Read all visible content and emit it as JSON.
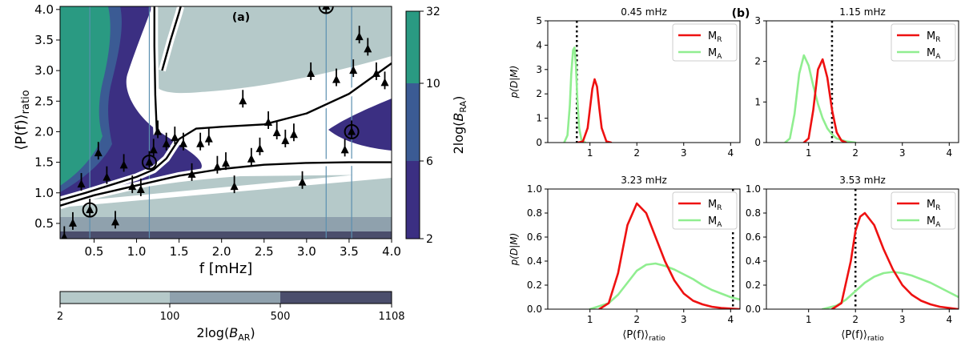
{
  "chart_data": [
    {
      "type": "contour",
      "panel_label": "(a)",
      "xlabel": "f [mHz]",
      "ylabel": "⟨P(f)⟩ratio",
      "ylabel_main": "⟨P(f)⟩",
      "ylabel_sub": "ratio",
      "xlim": [
        0.1,
        4.0
      ],
      "ylim": [
        0.25,
        4.05
      ],
      "xticks": [
        "0.5",
        "1.0",
        "1.5",
        "2.0",
        "2.5",
        "3.0",
        "3.5",
        "4.0"
      ],
      "yticks": [
        "0.5",
        "1.0",
        "1.5",
        "2.0",
        "2.5",
        "3.0",
        "3.5",
        "4.0"
      ],
      "xtick_values": [
        0.5,
        1.0,
        1.5,
        2.0,
        2.5,
        3.0,
        3.5,
        4.0
      ],
      "ytick_values": [
        0.5,
        1.0,
        1.5,
        2.0,
        2.5,
        3.0,
        3.5,
        4.0
      ],
      "colorbar_RA": {
        "label": "2log(BRA)",
        "label_prefix": "2log(",
        "label_sym": "B",
        "label_sub": "RA",
        "label_suffix": ")",
        "ticks": [
          "2",
          "6",
          "10",
          "32"
        ],
        "colors": [
          "#3b2f82",
          "#3b5b94",
          "#2a9a82"
        ]
      },
      "colorbar_AR": {
        "label": "2log(BAR)",
        "label_prefix": "2log(",
        "label_sym": "B",
        "label_sub": "AR",
        "label_suffix": ")",
        "ticks": [
          "2",
          "100",
          "500",
          "1108"
        ],
        "colors": [
          "#b5c9c9",
          "#8fa1ad",
          "#4b4e6c"
        ]
      },
      "vertical_lines_mhz": [
        0.45,
        1.15,
        3.23,
        3.53
      ],
      "curves": {
        "upper_x": [
          0.1,
          0.4,
          0.7,
          1.0,
          1.2,
          1.35,
          1.5,
          1.7,
          2.0,
          2.5,
          3.0,
          3.5,
          4.0
        ],
        "upper_y": [
          0.88,
          1.0,
          1.13,
          1.26,
          1.38,
          1.56,
          1.88,
          2.05,
          2.08,
          2.12,
          2.3,
          2.62,
          3.12
        ],
        "lower_x": [
          0.1,
          0.5,
          1.0,
          1.5,
          2.0,
          2.5,
          3.0,
          3.5,
          4.0
        ],
        "lower_y": [
          0.79,
          0.96,
          1.12,
          1.28,
          1.39,
          1.46,
          1.49,
          1.5,
          1.5
        ],
        "left_branch_x": [
          1.24,
          1.22,
          1.21,
          1.21
        ],
        "left_branch_y": [
          1.95,
          2.6,
          3.4,
          4.05
        ],
        "top_x": [
          1.3,
          1.4,
          1.5,
          1.52
        ],
        "top_y": [
          3.0,
          3.5,
          3.95,
          4.05
        ]
      },
      "points": [
        {
          "f": 0.15,
          "ratio": 0.27
        },
        {
          "f": 0.25,
          "ratio": 0.5
        },
        {
          "f": 0.35,
          "ratio": 1.14
        },
        {
          "f": 0.45,
          "ratio": 0.72
        },
        {
          "f": 0.55,
          "ratio": 1.65
        },
        {
          "f": 0.65,
          "ratio": 1.25
        },
        {
          "f": 0.75,
          "ratio": 0.52
        },
        {
          "f": 0.85,
          "ratio": 1.45
        },
        {
          "f": 0.95,
          "ratio": 1.1
        },
        {
          "f": 1.05,
          "ratio": 1.05
        },
        {
          "f": 1.15,
          "ratio": 1.5
        },
        {
          "f": 1.2,
          "ratio": 1.7
        },
        {
          "f": 1.25,
          "ratio": 2.0
        },
        {
          "f": 1.35,
          "ratio": 1.8
        },
        {
          "f": 1.45,
          "ratio": 1.9
        },
        {
          "f": 1.55,
          "ratio": 1.8
        },
        {
          "f": 1.65,
          "ratio": 1.3
        },
        {
          "f": 1.75,
          "ratio": 1.8
        },
        {
          "f": 1.85,
          "ratio": 1.88
        },
        {
          "f": 1.95,
          "ratio": 1.42
        },
        {
          "f": 2.05,
          "ratio": 1.48
        },
        {
          "f": 2.15,
          "ratio": 1.1
        },
        {
          "f": 2.25,
          "ratio": 2.5
        },
        {
          "f": 2.35,
          "ratio": 1.55
        },
        {
          "f": 2.45,
          "ratio": 1.72
        },
        {
          "f": 2.55,
          "ratio": 2.15
        },
        {
          "f": 2.65,
          "ratio": 1.98
        },
        {
          "f": 2.75,
          "ratio": 1.85
        },
        {
          "f": 2.85,
          "ratio": 1.95
        },
        {
          "f": 2.95,
          "ratio": 1.17
        },
        {
          "f": 3.05,
          "ratio": 2.95
        },
        {
          "f": 3.23,
          "ratio": 4.05
        },
        {
          "f": 3.35,
          "ratio": 2.85
        },
        {
          "f": 3.45,
          "ratio": 1.7
        },
        {
          "f": 3.53,
          "ratio": 2.0
        },
        {
          "f": 3.55,
          "ratio": 3.0
        },
        {
          "f": 3.62,
          "ratio": 3.55
        },
        {
          "f": 3.72,
          "ratio": 3.35
        },
        {
          "f": 3.82,
          "ratio": 2.95
        },
        {
          "f": 3.92,
          "ratio": 2.8
        }
      ],
      "circled_points": [
        {
          "f": 0.45,
          "ratio": 0.72
        },
        {
          "f": 1.15,
          "ratio": 1.5
        },
        {
          "f": 3.23,
          "ratio": 4.05
        },
        {
          "f": 3.53,
          "ratio": 2.0
        }
      ]
    },
    {
      "type": "line",
      "panel_label": "(b)",
      "ylabel": "p(D|M)",
      "xlabel": "⟨P(f)⟩ratio",
      "xlabel_main": "⟨P(f)⟩",
      "xlabel_sub": "ratio",
      "legend": [
        {
          "label": "MR",
          "main": "M",
          "sub": "R",
          "color": "#ee1111"
        },
        {
          "label": "MA",
          "main": "M",
          "sub": "A",
          "color": "#90ee90"
        }
      ],
      "subplots": [
        {
          "title": "0.45 mHz",
          "xlim": [
            0.1,
            4.2
          ],
          "ylim": [
            0,
            5
          ],
          "xticks": [
            "1",
            "2",
            "3",
            "4"
          ],
          "xtick_values": [
            1,
            2,
            3,
            4
          ],
          "yticks": [
            "0",
            "1",
            "2",
            "3",
            "4",
            "5"
          ],
          "ytick_values": [
            0,
            1,
            2,
            3,
            4,
            5
          ],
          "observed": 0.72,
          "series": [
            {
              "name": "MR",
              "x": [
                0.75,
                0.85,
                0.95,
                1.0,
                1.05,
                1.1,
                1.15,
                1.2,
                1.25,
                1.35,
                1.45
              ],
              "y": [
                0,
                0.05,
                0.6,
                1.4,
                2.2,
                2.6,
                2.3,
                1.4,
                0.6,
                0.05,
                0
              ]
            },
            {
              "name": "MA",
              "x": [
                0.45,
                0.52,
                0.57,
                0.6,
                0.64,
                0.67,
                0.7,
                0.73,
                0.77,
                0.82,
                0.9
              ],
              "y": [
                0,
                0.3,
                1.5,
                2.8,
                3.8,
                3.9,
                3.2,
                1.8,
                0.6,
                0.1,
                0
              ]
            }
          ]
        },
        {
          "title": "1.15 mHz",
          "xlim": [
            0.1,
            4.2
          ],
          "ylim": [
            0,
            3
          ],
          "xticks": [
            "1",
            "2",
            "3",
            "4"
          ],
          "xtick_values": [
            1,
            2,
            3,
            4
          ],
          "yticks": [
            "0",
            "1",
            "2",
            "3"
          ],
          "ytick_values": [
            0,
            1,
            2,
            3
          ],
          "observed": 1.5,
          "series": [
            {
              "name": "MR",
              "x": [
                0.9,
                1.0,
                1.1,
                1.2,
                1.3,
                1.4,
                1.5,
                1.6,
                1.7,
                1.8
              ],
              "y": [
                0,
                0.1,
                0.8,
                1.8,
                2.05,
                1.6,
                0.8,
                0.25,
                0.05,
                0
              ]
            },
            {
              "name": "MA",
              "x": [
                0.5,
                0.6,
                0.7,
                0.8,
                0.9,
                1.0,
                1.1,
                1.2,
                1.3,
                1.4,
                1.5,
                1.6,
                1.8,
                2.0
              ],
              "y": [
                0,
                0.1,
                0.7,
                1.7,
                2.15,
                1.9,
                1.4,
                0.95,
                0.6,
                0.35,
                0.2,
                0.1,
                0.03,
                0
              ]
            }
          ]
        },
        {
          "title": "3.23 mHz",
          "xlim": [
            0.1,
            4.2
          ],
          "ylim": [
            0,
            1.0
          ],
          "xticks": [
            "1",
            "2",
            "3",
            "4"
          ],
          "xtick_values": [
            1,
            2,
            3,
            4
          ],
          "yticks": [
            "0.0",
            "0.2",
            "0.4",
            "0.6",
            "0.8",
            "1.0"
          ],
          "ytick_values": [
            0,
            0.2,
            0.4,
            0.6,
            0.8,
            1.0
          ],
          "observed": 4.05,
          "series": [
            {
              "name": "MR",
              "x": [
                1.2,
                1.4,
                1.6,
                1.8,
                2.0,
                2.2,
                2.4,
                2.6,
                2.8,
                3.0,
                3.2,
                3.4,
                3.6,
                3.8,
                4.0,
                4.2
              ],
              "y": [
                0,
                0.05,
                0.3,
                0.7,
                0.88,
                0.8,
                0.6,
                0.4,
                0.24,
                0.13,
                0.07,
                0.04,
                0.02,
                0.01,
                0.005,
                0
              ]
            },
            {
              "name": "MA",
              "x": [
                1.0,
                1.4,
                1.6,
                1.8,
                2.0,
                2.2,
                2.4,
                2.6,
                2.8,
                3.0,
                3.2,
                3.4,
                3.6,
                3.8,
                4.0,
                4.2
              ],
              "y": [
                0,
                0.05,
                0.12,
                0.22,
                0.32,
                0.37,
                0.38,
                0.36,
                0.33,
                0.29,
                0.25,
                0.2,
                0.16,
                0.13,
                0.1,
                0.08
              ]
            }
          ]
        },
        {
          "title": "3.53 mHz",
          "xlim": [
            0.1,
            4.2
          ],
          "ylim": [
            0,
            1.0
          ],
          "xticks": [
            "1",
            "2",
            "3",
            "4"
          ],
          "xtick_values": [
            1,
            2,
            3,
            4
          ],
          "yticks": [
            "0.0",
            "0.2",
            "0.4",
            "0.6",
            "0.8",
            "1.0"
          ],
          "ytick_values": [
            0,
            0.2,
            0.4,
            0.6,
            0.8,
            1.0
          ],
          "observed": 2.0,
          "series": [
            {
              "name": "MR",
              "x": [
                1.5,
                1.7,
                1.9,
                2.0,
                2.1,
                2.2,
                2.4,
                2.6,
                2.8,
                3.0,
                3.2,
                3.4,
                3.6,
                3.8,
                4.0,
                4.2
              ],
              "y": [
                0,
                0.05,
                0.4,
                0.65,
                0.77,
                0.8,
                0.7,
                0.5,
                0.33,
                0.2,
                0.12,
                0.07,
                0.04,
                0.02,
                0.01,
                0
              ]
            },
            {
              "name": "MA",
              "x": [
                1.3,
                1.6,
                1.8,
                2.0,
                2.2,
                2.4,
                2.6,
                2.8,
                3.0,
                3.2,
                3.4,
                3.6,
                3.8,
                4.0,
                4.2
              ],
              "y": [
                0,
                0.03,
                0.08,
                0.15,
                0.22,
                0.27,
                0.3,
                0.31,
                0.3,
                0.28,
                0.25,
                0.22,
                0.18,
                0.14,
                0.1
              ]
            }
          ]
        }
      ]
    }
  ]
}
